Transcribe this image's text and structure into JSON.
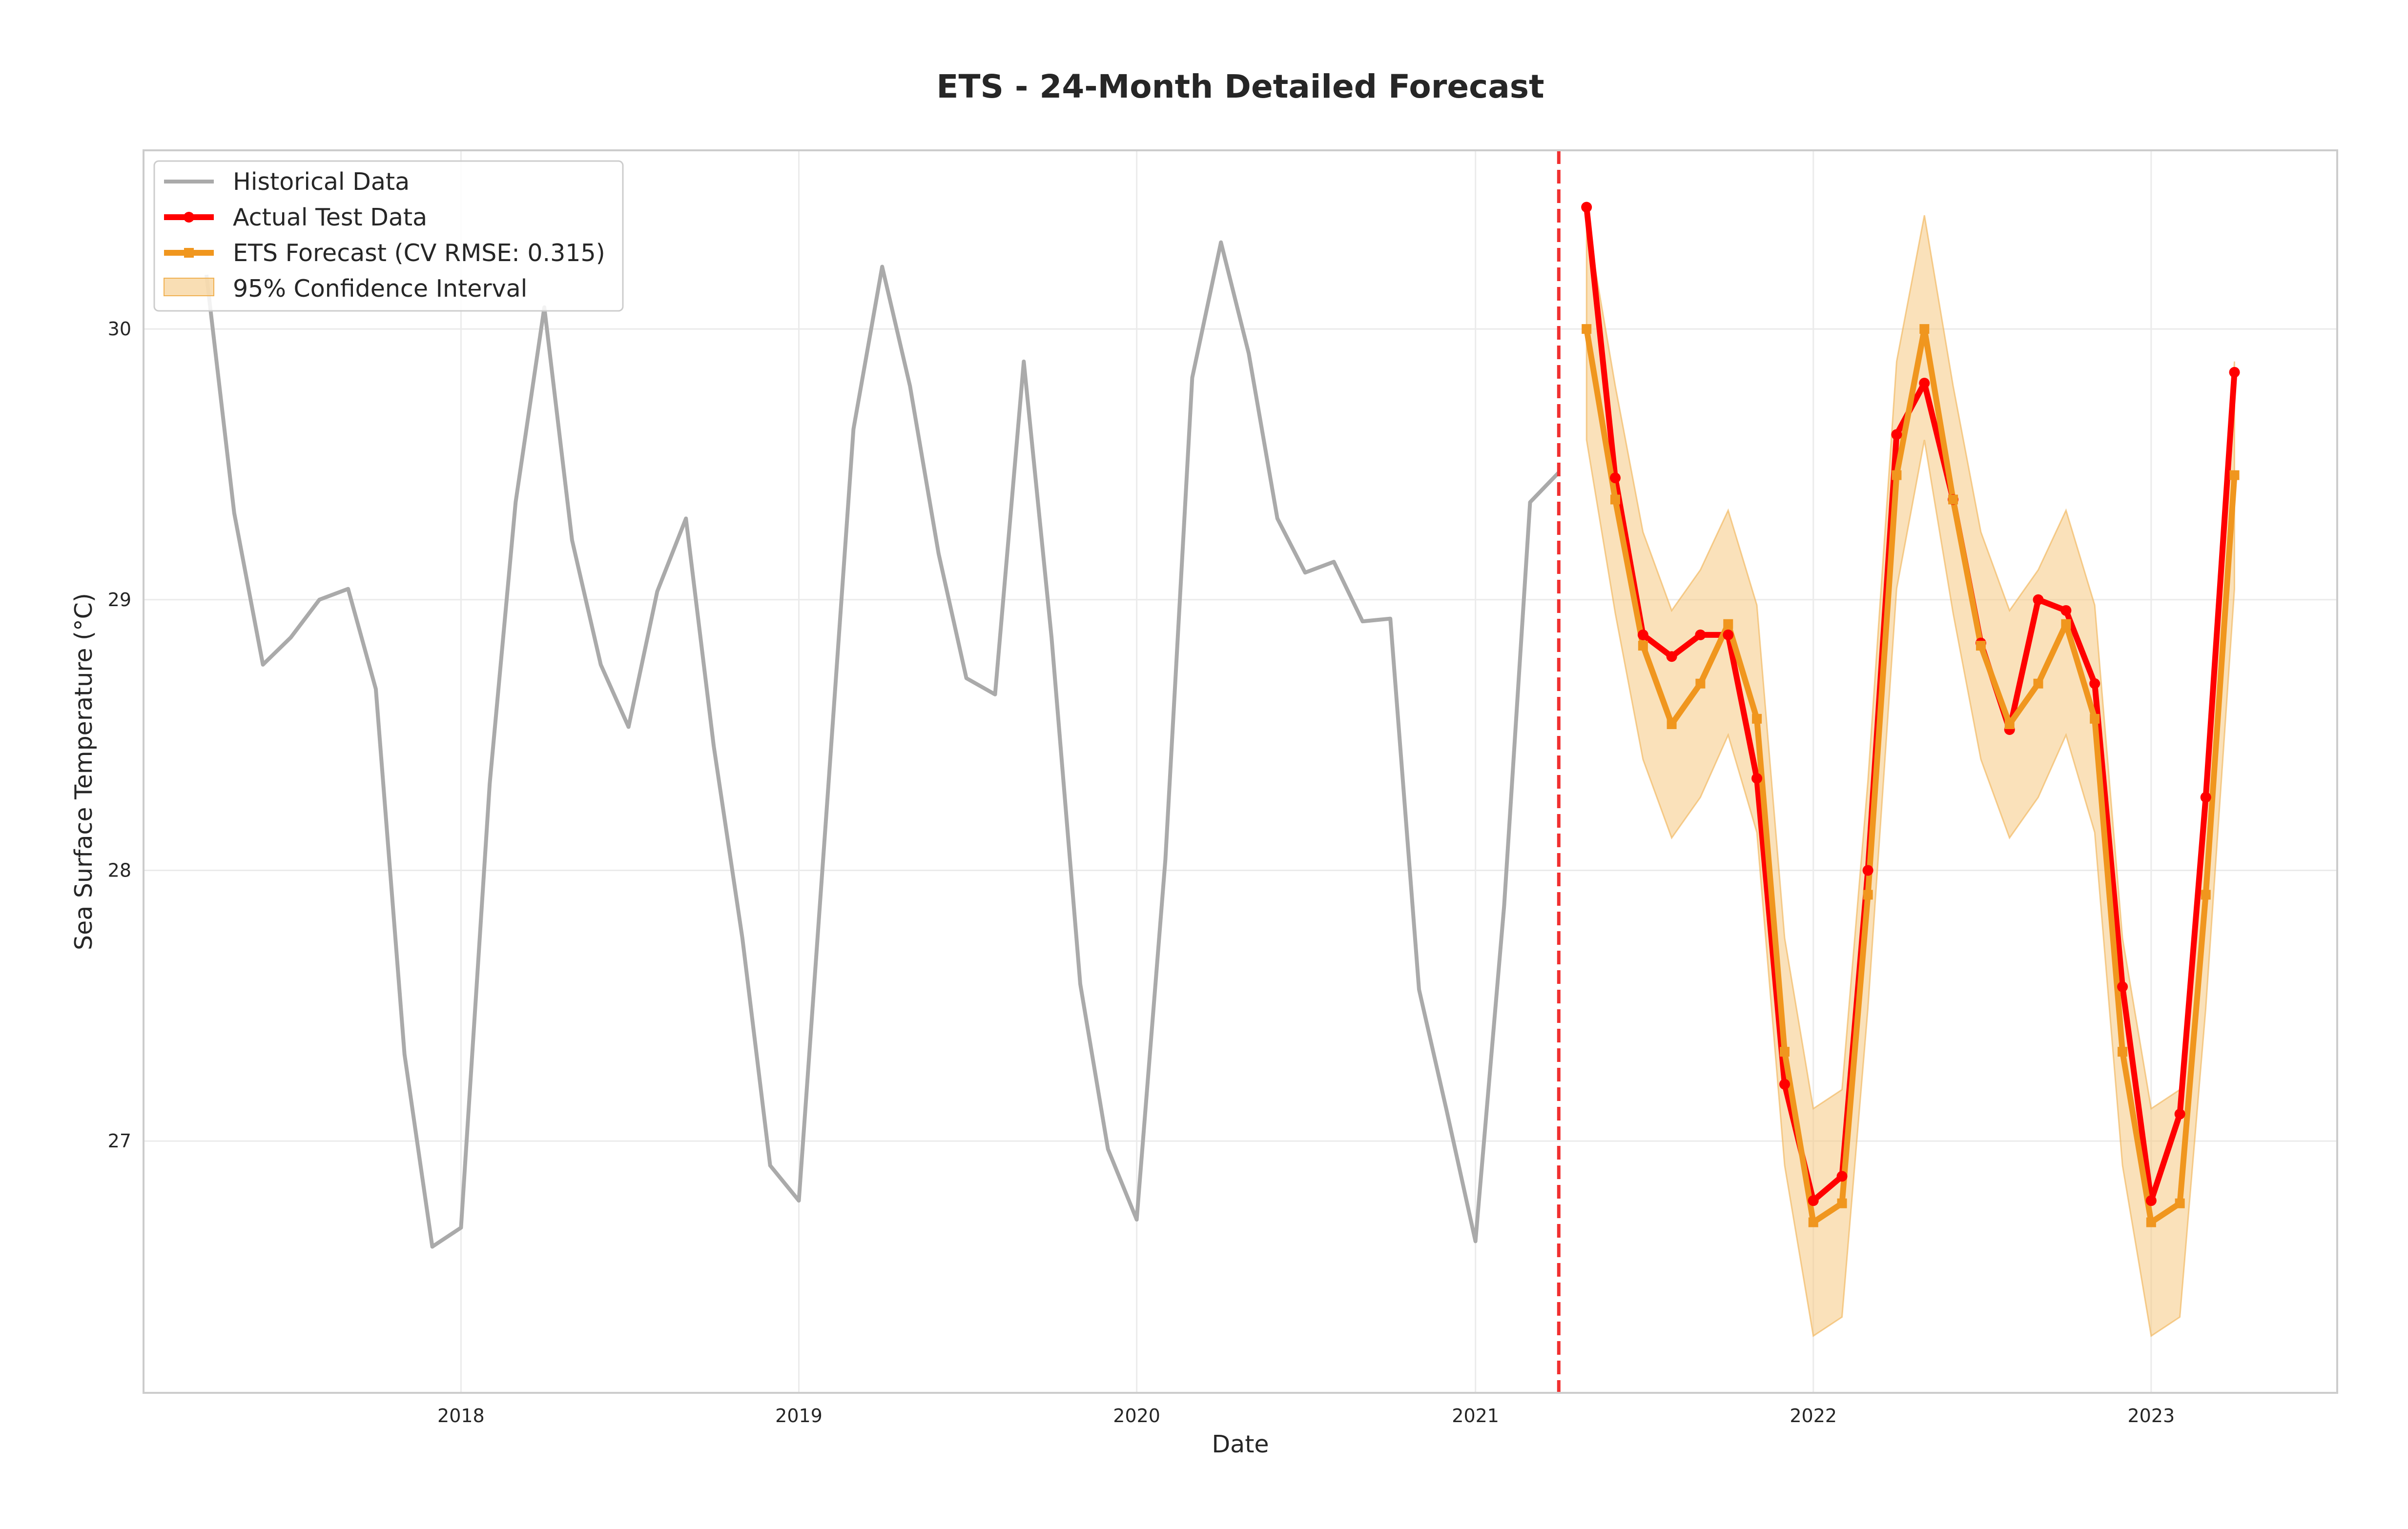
{
  "chart_data": {
    "type": "line",
    "title": "ETS - 24-Month Detailed Forecast",
    "xlabel": "Date",
    "ylabel": "Sea Surface Temperature (°C)",
    "xlim": [
      "2017-01-23",
      "2023-07-21"
    ],
    "ylim": [
      26.07,
      30.66
    ],
    "x_ticks": [
      "2018",
      "2019",
      "2020",
      "2021",
      "2022",
      "2023"
    ],
    "y_ticks": [
      27,
      28,
      29,
      30
    ],
    "grid": true,
    "legend_position": "upper left",
    "colors": {
      "historical": "#aaaaaa",
      "actual": "#ff0000",
      "forecast": "#f0961e",
      "confidence": "#f5c882",
      "split_line": "#f03030"
    },
    "split_date": "2021-04-01",
    "series": [
      {
        "name": "Historical Data",
        "x": [
          "2017-04-01",
          "2017-05-01",
          "2017-06-01",
          "2017-07-01",
          "2017-08-01",
          "2017-09-01",
          "2017-10-01",
          "2017-11-01",
          "2017-12-01",
          "2018-01-01",
          "2018-02-01",
          "2018-03-01",
          "2018-04-01",
          "2018-05-01",
          "2018-06-01",
          "2018-07-01",
          "2018-08-01",
          "2018-09-01",
          "2018-10-01",
          "2018-11-01",
          "2018-12-01",
          "2019-01-01",
          "2019-02-01",
          "2019-03-01",
          "2019-04-01",
          "2019-05-01",
          "2019-06-01",
          "2019-07-01",
          "2019-08-01",
          "2019-09-01",
          "2019-10-01",
          "2019-11-01",
          "2019-12-01",
          "2020-01-01",
          "2020-02-01",
          "2020-03-01",
          "2020-04-01",
          "2020-05-01",
          "2020-06-01",
          "2020-07-01",
          "2020-08-01",
          "2020-09-01",
          "2020-10-01",
          "2020-11-01",
          "2020-12-01",
          "2021-01-01",
          "2021-02-01",
          "2021-03-01",
          "2021-04-01"
        ],
        "values": [
          30.2,
          29.32,
          28.76,
          28.86,
          29.0,
          29.04,
          28.67,
          27.32,
          26.61,
          26.68,
          28.32,
          29.36,
          30.08,
          29.22,
          28.76,
          28.53,
          29.03,
          29.3,
          28.46,
          27.75,
          26.91,
          26.78,
          28.27,
          29.63,
          30.23,
          29.79,
          29.17,
          28.71,
          28.65,
          29.88,
          28.86,
          27.58,
          26.97,
          26.71,
          28.04,
          29.82,
          30.32,
          29.91,
          29.3,
          29.1,
          29.14,
          28.92,
          28.93,
          27.56,
          27.11,
          26.63,
          27.87,
          29.36,
          29.47
        ]
      },
      {
        "name": "Actual Test Data",
        "x": [
          "2021-05-01",
          "2021-06-01",
          "2021-07-01",
          "2021-08-01",
          "2021-09-01",
          "2021-10-01",
          "2021-11-01",
          "2021-12-01",
          "2022-01-01",
          "2022-02-01",
          "2022-03-01",
          "2022-04-01",
          "2022-05-01",
          "2022-06-01",
          "2022-07-01",
          "2022-08-01",
          "2022-09-01",
          "2022-10-01",
          "2022-11-01",
          "2022-12-01",
          "2023-01-01",
          "2023-02-01",
          "2023-03-01",
          "2023-04-01"
        ],
        "values": [
          30.45,
          29.45,
          28.87,
          28.79,
          28.87,
          28.87,
          28.34,
          27.21,
          26.78,
          26.87,
          28.0,
          29.61,
          29.8,
          29.37,
          28.84,
          28.52,
          29.0,
          28.96,
          28.69,
          27.57,
          26.78,
          27.1,
          28.27,
          29.84
        ]
      },
      {
        "name": "ETS Forecast (CV RMSE: 0.315)",
        "x": [
          "2021-05-01",
          "2021-06-01",
          "2021-07-01",
          "2021-08-01",
          "2021-09-01",
          "2021-10-01",
          "2021-11-01",
          "2021-12-01",
          "2022-01-01",
          "2022-02-01",
          "2022-03-01",
          "2022-04-01",
          "2022-05-01",
          "2022-06-01",
          "2022-07-01",
          "2022-08-01",
          "2022-09-01",
          "2022-10-01",
          "2022-11-01",
          "2022-12-01",
          "2023-01-01",
          "2023-02-01",
          "2023-03-01",
          "2023-04-01"
        ],
        "values": [
          30.0,
          29.37,
          28.83,
          28.54,
          28.69,
          28.91,
          28.56,
          27.33,
          26.7,
          26.77,
          27.91,
          29.46,
          30.0,
          29.37,
          28.83,
          28.54,
          28.69,
          28.91,
          28.56,
          27.33,
          26.7,
          26.77,
          27.91,
          29.46
        ]
      },
      {
        "name": "95% Confidence Interval",
        "x": [
          "2021-05-01",
          "2021-06-01",
          "2021-07-01",
          "2021-08-01",
          "2021-09-01",
          "2021-10-01",
          "2021-11-01",
          "2021-12-01",
          "2022-01-01",
          "2022-02-01",
          "2022-03-01",
          "2022-04-01",
          "2022-05-01",
          "2022-06-01",
          "2022-07-01",
          "2022-08-01",
          "2022-09-01",
          "2022-10-01",
          "2022-11-01",
          "2022-12-01",
          "2023-01-01",
          "2023-02-01",
          "2023-03-01",
          "2023-04-01"
        ],
        "lower": [
          29.59,
          28.95,
          28.41,
          28.12,
          28.27,
          28.5,
          28.14,
          26.91,
          26.28,
          26.35,
          27.49,
          29.04,
          29.59,
          28.95,
          28.41,
          28.12,
          28.27,
          28.5,
          28.14,
          26.91,
          26.28,
          26.35,
          27.49,
          29.04
        ],
        "upper": [
          30.41,
          29.79,
          29.25,
          28.96,
          29.11,
          29.33,
          28.98,
          27.75,
          27.12,
          27.19,
          28.33,
          29.88,
          30.42,
          29.79,
          29.25,
          28.96,
          29.11,
          29.33,
          28.98,
          27.75,
          27.12,
          27.19,
          28.33,
          29.88
        ]
      }
    ]
  }
}
